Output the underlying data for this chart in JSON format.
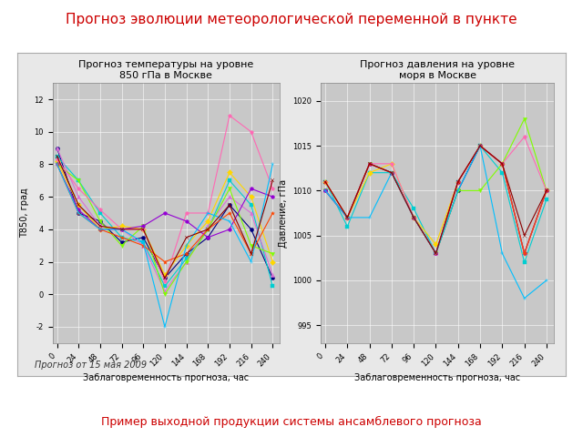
{
  "title_main": "Прогноз эволюции метеорологической переменной в пункте",
  "title_main_color": "#cc0000",
  "subtitle_bottom": "Пример выходной продукции системы ансамблевого прогноза",
  "subtitle_bottom_color": "#cc0000",
  "caption": "Прогноз от 15 мая 2009",
  "plot1_title": "Прогноз температуры на уровне\n850 гПа в Москве",
  "plot2_title": "Прогноз давления на уровне\nморя в Москве",
  "xlabel": "Заблаговременность прогноза, час",
  "ylabel1": "Т850, град",
  "ylabel2": "Давление, гПа",
  "xticks": [
    0,
    24,
    48,
    72,
    96,
    120,
    144,
    168,
    192,
    216,
    240
  ],
  "yticks1": [
    -2,
    0,
    2,
    4,
    6,
    8,
    10,
    12
  ],
  "ylim1": [
    -3,
    13
  ],
  "yticks2": [
    995,
    1000,
    1005,
    1010,
    1015,
    1020
  ],
  "ylim2": [
    993,
    1022
  ],
  "plot_bg_color": "#c8c8c8",
  "outer_bg_color": "#e8e8e8",
  "fig_bg_color": "#ffffff",
  "line_colors": [
    "#000080",
    "#00ced1",
    "#da70d6",
    "#ffd700",
    "#7fff00",
    "#ff69b4",
    "#9400d3",
    "#ff4500",
    "#00bfff",
    "#8b0000",
    "#006400",
    "#ff8c00"
  ],
  "x_vals": [
    0,
    24,
    48,
    72,
    96,
    120,
    144,
    168,
    192,
    216,
    240
  ],
  "temp_series": [
    [
      9.0,
      5.0,
      4.5,
      3.2,
      3.5,
      1.0,
      2.5,
      3.5,
      5.5,
      4.0,
      1.0
    ],
    [
      8.5,
      7.0,
      5.0,
      3.5,
      3.2,
      0.5,
      2.2,
      4.0,
      7.0,
      5.5,
      0.5
    ],
    [
      9.0,
      6.0,
      4.2,
      4.0,
      3.0,
      0.2,
      2.0,
      4.2,
      6.0,
      5.0,
      1.2
    ],
    [
      8.2,
      5.5,
      4.0,
      4.2,
      4.0,
      1.2,
      3.0,
      4.5,
      7.5,
      6.0,
      2.0
    ],
    [
      8.0,
      7.0,
      4.5,
      3.0,
      4.2,
      0.0,
      2.0,
      4.0,
      6.5,
      3.0,
      2.5
    ],
    [
      8.3,
      6.5,
      5.2,
      4.0,
      4.0,
      0.8,
      5.0,
      5.0,
      11.0,
      10.0,
      6.5
    ],
    [
      8.0,
      5.2,
      4.0,
      4.0,
      4.2,
      5.0,
      4.5,
      3.5,
      4.0,
      6.5,
      6.0
    ],
    [
      8.0,
      5.0,
      4.0,
      3.5,
      3.0,
      2.0,
      2.5,
      4.0,
      5.0,
      2.5,
      5.0
    ],
    [
      8.0,
      5.0,
      4.0,
      4.0,
      3.2,
      -2.0,
      3.0,
      5.0,
      4.5,
      2.0,
      8.0
    ],
    [
      8.5,
      5.5,
      4.2,
      4.0,
      4.0,
      1.0,
      3.5,
      4.0,
      5.5,
      2.5,
      7.0
    ]
  ],
  "pres_series": [
    [
      1010,
      1007,
      1013,
      1012,
      1007,
      1003,
      1010,
      1015,
      1013,
      1003,
      1010
    ],
    [
      1011,
      1006,
      1012,
      1012,
      1008,
      1003,
      1011,
      1015,
      1012,
      1002,
      1009
    ],
    [
      1010,
      1007,
      1013,
      1012,
      1007,
      1003,
      1011,
      1015,
      1013,
      1003,
      1010
    ],
    [
      1011,
      1007,
      1012,
      1013,
      1007,
      1004,
      1011,
      1015,
      1013,
      1003,
      1010
    ],
    [
      1010,
      1007,
      1013,
      1012,
      1007,
      1003,
      1010,
      1010,
      1013,
      1018,
      1010
    ],
    [
      1011,
      1007,
      1013,
      1013,
      1007,
      1003,
      1011,
      1015,
      1013,
      1016,
      1010
    ],
    [
      1010,
      1007,
      1013,
      1012,
      1007,
      1003,
      1011,
      1015,
      1013,
      1003,
      1010
    ],
    [
      1011,
      1007,
      1013,
      1012,
      1007,
      1003,
      1011,
      1015,
      1013,
      1003,
      1010
    ],
    [
      1010,
      1007,
      1007,
      1012,
      1007,
      1003,
      1010,
      1015,
      1003,
      998,
      1000
    ],
    [
      1011,
      1007,
      1013,
      1012,
      1007,
      1003,
      1011,
      1015,
      1013,
      1005,
      1010
    ]
  ]
}
